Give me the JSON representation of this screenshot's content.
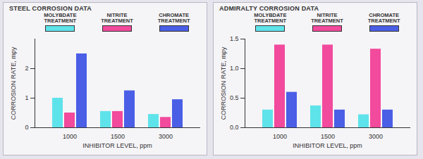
{
  "chart_data": [
    {
      "type": "bar",
      "title": "STEEL CORROSION DATA",
      "x_label": "INHIBITOR LEVEL, ppm",
      "y_label": "CORROSION RATE, mpy",
      "categories": [
        "1000",
        "1500",
        "3000"
      ],
      "series": [
        {
          "name": "MOLYBDATE TREATMENT",
          "color": "#5fe3ea",
          "values": [
            1.0,
            0.55,
            0.45
          ]
        },
        {
          "name": "NITRITE TREATMENT",
          "color": "#f24a9c",
          "values": [
            0.5,
            0.55,
            0.35
          ]
        },
        {
          "name": "CHROMATE TREATMENT",
          "color": "#4a5fe6",
          "values": [
            2.5,
            1.25,
            0.95
          ]
        }
      ],
      "ylim": [
        0,
        3
      ],
      "yticks": [
        0,
        1,
        2
      ],
      "grid": false,
      "legend": "top"
    },
    {
      "type": "bar",
      "title": "ADMIRALTY CORROSION DATA",
      "x_label": "INHIBITOR LEVEL, ppm",
      "y_label": "CORROSION RATE, mpy",
      "categories": [
        "1000",
        "1500",
        "3000"
      ],
      "series": [
        {
          "name": "MOLYBDATE TREATMENT",
          "color": "#5fe3ea",
          "values": [
            0.3,
            0.37,
            0.22
          ]
        },
        {
          "name": "NITRITE TREATMENT",
          "color": "#f24a9c",
          "values": [
            1.4,
            1.4,
            1.33
          ]
        },
        {
          "name": "CHROMATE TREATMENT",
          "color": "#4a5fe6",
          "values": [
            0.6,
            0.3,
            0.3
          ]
        }
      ],
      "ylim": [
        0,
        1.5
      ],
      "yticks": [
        {
          "value": 0,
          "label": "0.0"
        },
        0.5,
        {
          "value": 1,
          "label": "1.0"
        },
        1.5
      ],
      "grid": false,
      "legend": "top"
    }
  ]
}
